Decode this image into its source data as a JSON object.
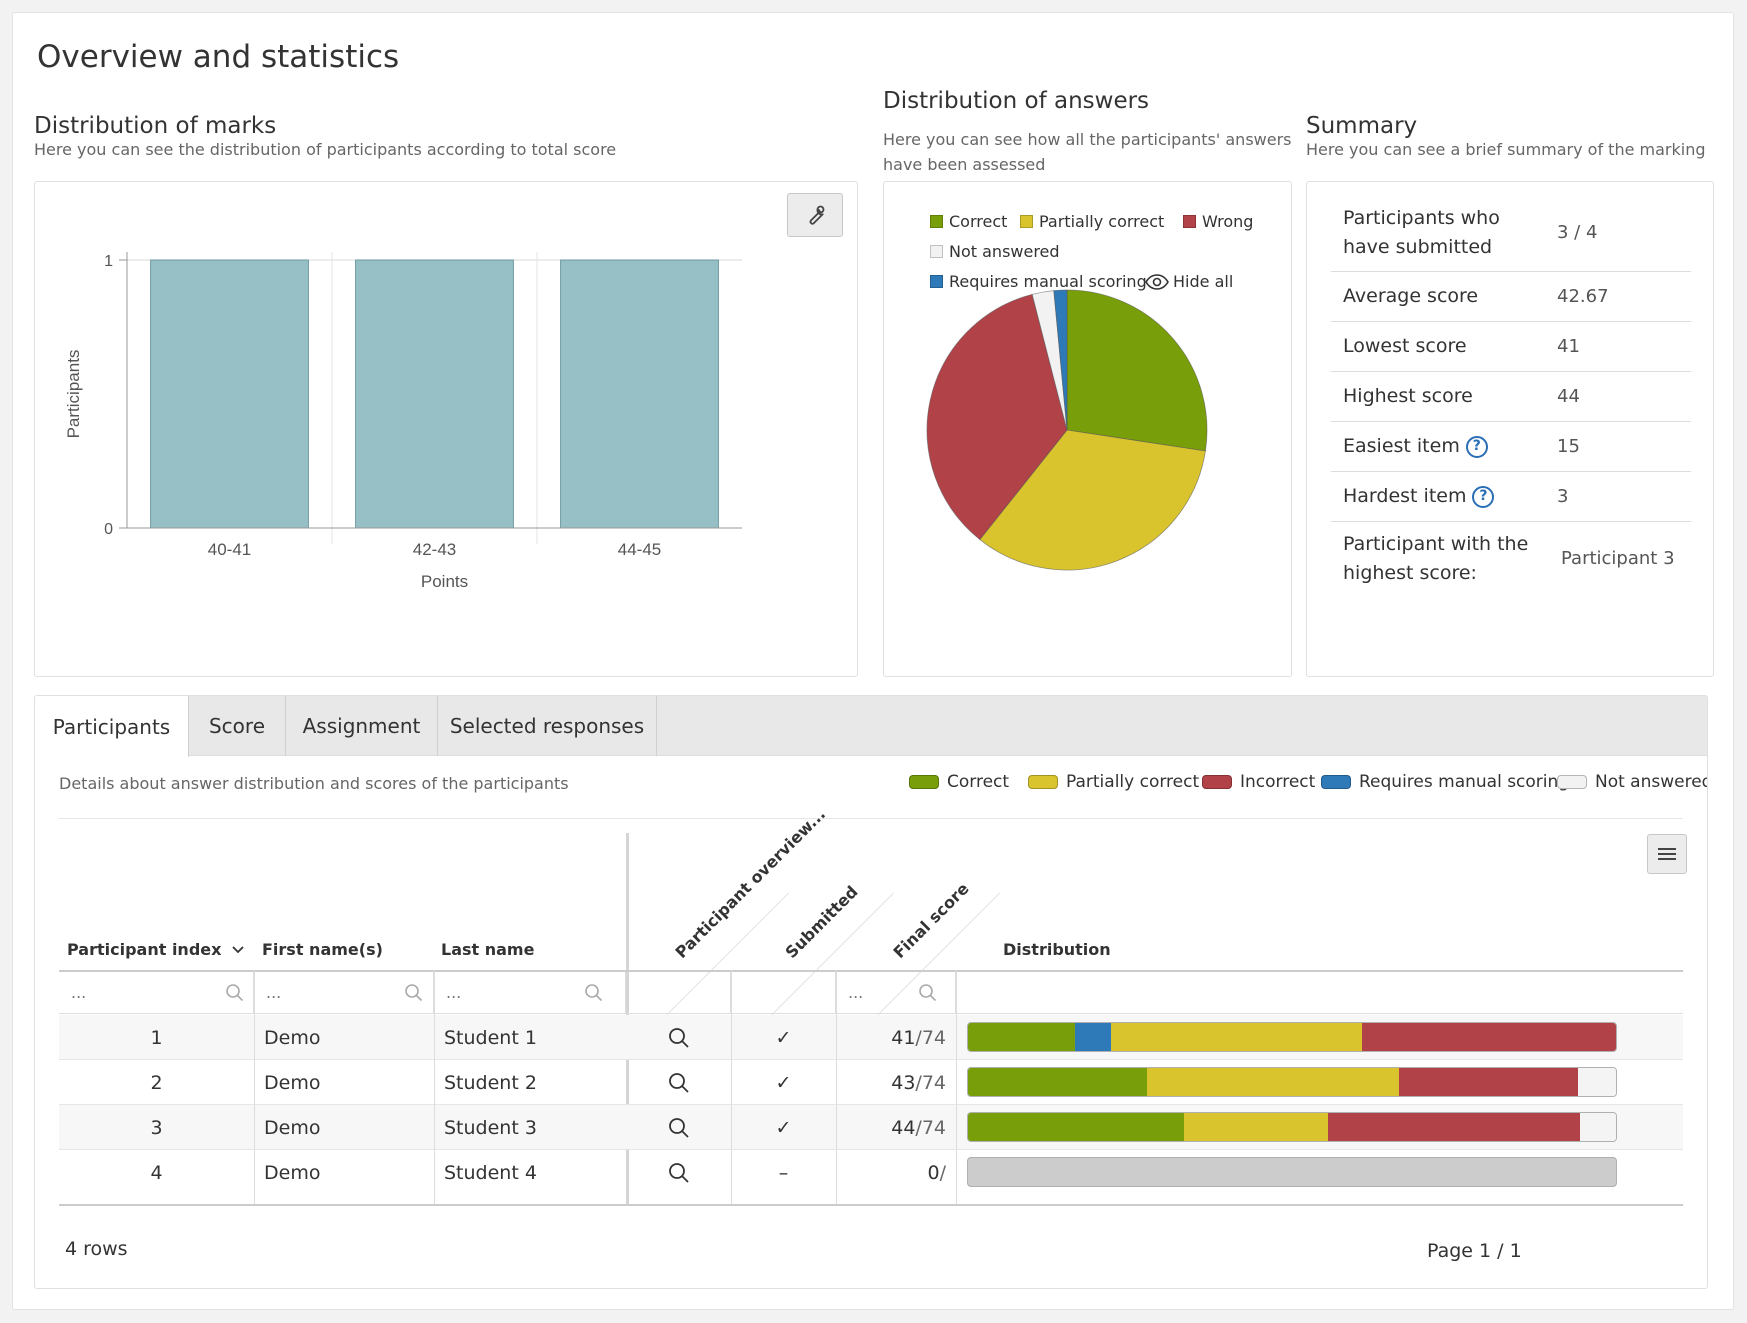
{
  "page": {
    "title": "Overview and statistics"
  },
  "marks": {
    "title": "Distribution of marks",
    "description": "Here you can see the distribution of participants according to total score",
    "settings_icon": "wrench-icon"
  },
  "answers": {
    "title": "Distribution of answers",
    "description_line1": "Here you can see how all the participants' answers",
    "description_line2": "have been assessed",
    "legend": [
      {
        "label": "Correct",
        "color": "#789e0a"
      },
      {
        "label": "Partially correct",
        "color": "#d9c42e"
      },
      {
        "label": "Wrong",
        "color": "#b14248"
      },
      {
        "label": "Not answered",
        "color": "#f2f2f2"
      },
      {
        "label": "Requires manual scoring",
        "color": "#2e79b7"
      }
    ],
    "hide_all_label": "Hide all",
    "hide_all_icon": "eye-icon"
  },
  "summary": {
    "title": "Summary",
    "description": "Here you can see a brief summary of the marking",
    "rows": [
      {
        "label_line1": "Participants who",
        "label_line2": "have submitted",
        "value": "3 / 4"
      },
      {
        "label": "Average score",
        "value": "42.67"
      },
      {
        "label": "Lowest score",
        "value": "41"
      },
      {
        "label": "Highest score",
        "value": "44"
      },
      {
        "label": "Easiest item",
        "value": "15",
        "icon": "help-icon"
      },
      {
        "label": "Hardest item",
        "value": "3",
        "icon": "help-icon"
      },
      {
        "label_line1": "Participant with the",
        "label_line2": "highest score:",
        "value": "Participant 3"
      }
    ]
  },
  "chart_data": [
    {
      "type": "bar",
      "categories": [
        "40-41",
        "42-43",
        "44-45"
      ],
      "values": [
        1,
        1,
        1
      ],
      "title": "",
      "xlabel": "Points",
      "ylabel": "Participants",
      "ylim": [
        0,
        1
      ],
      "yticks": [
        0,
        1
      ],
      "bar_color": "#96c0c6",
      "grid": true
    },
    {
      "type": "pie",
      "labels": [
        "Correct",
        "Partially correct",
        "Wrong",
        "Not answered",
        "Requires manual scoring"
      ],
      "values": [
        27.4,
        33.3,
        35.3,
        2.5,
        1.5
      ],
      "colors": [
        "#789e0a",
        "#d9c42e",
        "#b14248",
        "#f2f2f2",
        "#2e79b7"
      ],
      "legend_placement": "top"
    }
  ],
  "tabs": [
    {
      "label": "Participants",
      "active": true
    },
    {
      "label": "Score",
      "active": false
    },
    {
      "label": "Assignment",
      "active": false
    },
    {
      "label": "Selected responses",
      "active": false
    }
  ],
  "table": {
    "description": "Details about answer distribution and scores of the participants",
    "legend": [
      {
        "label": "Correct",
        "color": "#789e0a"
      },
      {
        "label": "Partially correct",
        "color": "#d9c42e"
      },
      {
        "label": "Incorrect",
        "color": "#b14248"
      },
      {
        "label": "Requires manual scoring",
        "color": "#2e79b7"
      },
      {
        "label": "Not answered",
        "color": "#f2f2f2"
      }
    ],
    "menu_icon": "hamburger-menu-icon",
    "columns": {
      "index": "Participant index",
      "first": "First name(s)",
      "last": "Last name",
      "overview": "Participant overview...",
      "submitted": "Submitted",
      "final": "Final score",
      "distribution": "Distribution"
    },
    "filter_placeholder": "...",
    "rows": [
      {
        "index": "1",
        "first": "Demo",
        "last": "Student 1",
        "submitted": "✓",
        "score": "41",
        "max": "/74",
        "dist": {
          "correct": 16.5,
          "manual": 5.5,
          "partial": 38.8,
          "wrong": 39.2,
          "none": 0
        }
      },
      {
        "index": "2",
        "first": "Demo",
        "last": "Student 2",
        "submitted": "✓",
        "score": "43",
        "max": "/74",
        "dist": {
          "correct": 27.7,
          "manual": 0,
          "partial": 38.8,
          "wrong": 27.7,
          "none": 5.8
        }
      },
      {
        "index": "3",
        "first": "Demo",
        "last": "Student 3",
        "submitted": "✓",
        "score": "44",
        "max": "/74",
        "dist": {
          "correct": 33.3,
          "manual": 0,
          "partial": 22.2,
          "wrong": 38.9,
          "none": 5.6
        }
      },
      {
        "index": "4",
        "first": "Demo",
        "last": "Student 4",
        "submitted": "–",
        "score": "0",
        "max": "/",
        "dist": {
          "correct": 0,
          "manual": 0,
          "partial": 0,
          "wrong": 0,
          "none": 100
        }
      }
    ],
    "row_count": "4 rows",
    "pagination": "Page 1 / 1"
  }
}
